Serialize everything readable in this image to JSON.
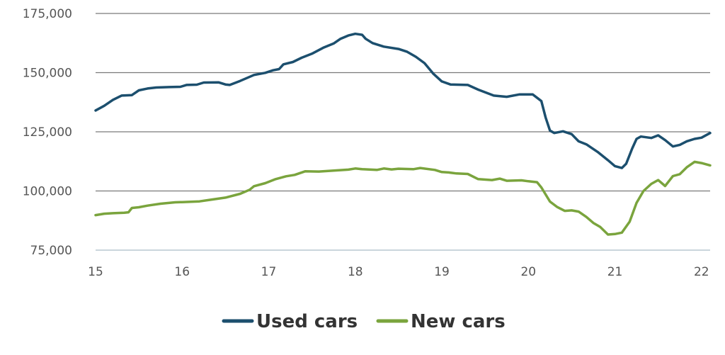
{
  "chart_data": {
    "type": "line",
    "title": "",
    "xlabel": "",
    "ylabel": "",
    "xlim": [
      15,
      22.1
    ],
    "ylim": [
      75000,
      175000
    ],
    "x_ticks": [
      15,
      16,
      17,
      18,
      19,
      20,
      21,
      22
    ],
    "x_tick_labels": [
      "15",
      "16",
      "17",
      "18",
      "19",
      "20",
      "21",
      "22"
    ],
    "y_ticks": [
      75000,
      100000,
      125000,
      150000,
      175000
    ],
    "y_tick_labels": [
      "75,000",
      "100,000",
      "125,000",
      "150,000",
      "175,000"
    ],
    "grid": "horizontal",
    "legend": "bottom-center",
    "series": [
      {
        "name": "Used cars",
        "color": "#1c4f6e",
        "points": [
          [
            15.0,
            134000
          ],
          [
            15.1,
            136000
          ],
          [
            15.2,
            138500
          ],
          [
            15.3,
            140300
          ],
          [
            15.42,
            140500
          ],
          [
            15.5,
            142500
          ],
          [
            15.6,
            143300
          ],
          [
            15.7,
            143700
          ],
          [
            15.85,
            143900
          ],
          [
            15.98,
            144000
          ],
          [
            16.05,
            144800
          ],
          [
            16.17,
            144900
          ],
          [
            16.25,
            145800
          ],
          [
            16.42,
            145900
          ],
          [
            16.5,
            145000
          ],
          [
            16.55,
            144800
          ],
          [
            16.67,
            146500
          ],
          [
            16.83,
            149000
          ],
          [
            16.96,
            149900
          ],
          [
            17.05,
            151000
          ],
          [
            17.12,
            151500
          ],
          [
            17.17,
            153500
          ],
          [
            17.28,
            154500
          ],
          [
            17.38,
            156300
          ],
          [
            17.5,
            158000
          ],
          [
            17.63,
            160500
          ],
          [
            17.75,
            162300
          ],
          [
            17.83,
            164300
          ],
          [
            17.92,
            165700
          ],
          [
            18.0,
            166400
          ],
          [
            18.08,
            166000
          ],
          [
            18.12,
            164300
          ],
          [
            18.2,
            162500
          ],
          [
            18.33,
            161000
          ],
          [
            18.5,
            160000
          ],
          [
            18.6,
            158800
          ],
          [
            18.7,
            156700
          ],
          [
            18.8,
            154000
          ],
          [
            18.9,
            149600
          ],
          [
            19.0,
            146300
          ],
          [
            19.1,
            145000
          ],
          [
            19.3,
            144800
          ],
          [
            19.42,
            142800
          ],
          [
            19.6,
            140300
          ],
          [
            19.75,
            139800
          ],
          [
            19.9,
            140800
          ],
          [
            20.05,
            140800
          ],
          [
            20.15,
            138000
          ],
          [
            20.2,
            131000
          ],
          [
            20.25,
            125500
          ],
          [
            20.3,
            124500
          ],
          [
            20.4,
            125200
          ],
          [
            20.5,
            124000
          ],
          [
            20.58,
            121000
          ],
          [
            20.67,
            119700
          ],
          [
            20.8,
            116500
          ],
          [
            20.92,
            113000
          ],
          [
            21.0,
            110500
          ],
          [
            21.08,
            109700
          ],
          [
            21.13,
            111500
          ],
          [
            21.2,
            118000
          ],
          [
            21.25,
            122000
          ],
          [
            21.3,
            123000
          ],
          [
            21.42,
            122400
          ],
          [
            21.5,
            123500
          ],
          [
            21.58,
            121500
          ],
          [
            21.67,
            118800
          ],
          [
            21.75,
            119500
          ],
          [
            21.83,
            121000
          ],
          [
            21.92,
            122000
          ],
          [
            22.0,
            122500
          ],
          [
            22.1,
            124500
          ]
        ]
      },
      {
        "name": "New cars",
        "color": "#7aa43d",
        "points": [
          [
            15.0,
            89800
          ],
          [
            15.1,
            90400
          ],
          [
            15.2,
            90600
          ],
          [
            15.33,
            90800
          ],
          [
            15.38,
            91000
          ],
          [
            15.42,
            92800
          ],
          [
            15.5,
            93100
          ],
          [
            15.6,
            93800
          ],
          [
            15.75,
            94600
          ],
          [
            15.92,
            95200
          ],
          [
            16.0,
            95300
          ],
          [
            16.2,
            95600
          ],
          [
            16.33,
            96300
          ],
          [
            16.5,
            97200
          ],
          [
            16.67,
            98800
          ],
          [
            16.78,
            100500
          ],
          [
            16.83,
            102000
          ],
          [
            16.96,
            103300
          ],
          [
            17.08,
            105000
          ],
          [
            17.2,
            106200
          ],
          [
            17.3,
            106800
          ],
          [
            17.42,
            108300
          ],
          [
            17.58,
            108200
          ],
          [
            17.75,
            108600
          ],
          [
            17.92,
            109000
          ],
          [
            18.0,
            109500
          ],
          [
            18.08,
            109200
          ],
          [
            18.25,
            108900
          ],
          [
            18.33,
            109500
          ],
          [
            18.42,
            109100
          ],
          [
            18.5,
            109400
          ],
          [
            18.67,
            109200
          ],
          [
            18.75,
            109700
          ],
          [
            18.92,
            108900
          ],
          [
            19.0,
            108000
          ],
          [
            19.08,
            107800
          ],
          [
            19.17,
            107400
          ],
          [
            19.3,
            107200
          ],
          [
            19.42,
            105000
          ],
          [
            19.58,
            104600
          ],
          [
            19.67,
            105200
          ],
          [
            19.75,
            104300
          ],
          [
            19.92,
            104500
          ],
          [
            20.0,
            104100
          ],
          [
            20.1,
            103700
          ],
          [
            20.15,
            101500
          ],
          [
            20.25,
            95500
          ],
          [
            20.33,
            93300
          ],
          [
            20.42,
            91600
          ],
          [
            20.5,
            91800
          ],
          [
            20.58,
            91300
          ],
          [
            20.67,
            89000
          ],
          [
            20.75,
            86500
          ],
          [
            20.83,
            84800
          ],
          [
            20.92,
            81600
          ],
          [
            21.0,
            81800
          ],
          [
            21.08,
            82400
          ],
          [
            21.17,
            87000
          ],
          [
            21.25,
            95000
          ],
          [
            21.33,
            100000
          ],
          [
            21.42,
            103000
          ],
          [
            21.5,
            104600
          ],
          [
            21.58,
            102100
          ],
          [
            21.67,
            106300
          ],
          [
            21.75,
            107100
          ],
          [
            21.83,
            110000
          ],
          [
            21.92,
            112300
          ],
          [
            22.0,
            111800
          ],
          [
            22.1,
            110800
          ]
        ]
      }
    ]
  },
  "legend": {
    "used_label": "Used cars",
    "new_label": "New cars"
  }
}
